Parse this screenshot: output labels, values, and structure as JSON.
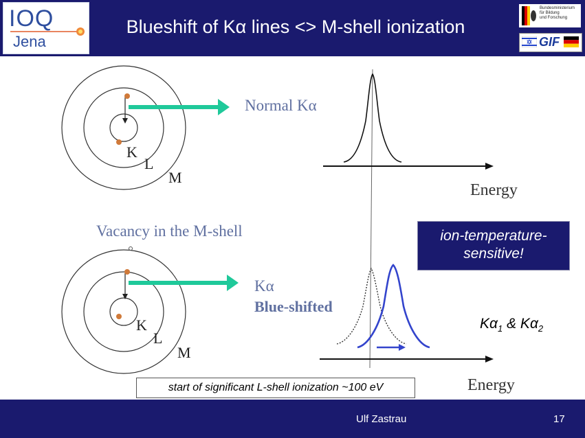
{
  "header": {
    "title": "Blueshift of Kα lines <> M-shell ionization",
    "logo_left_line1": "IOQ",
    "logo_left_line2": "Jena",
    "bmbf_text": "Bundesministerium\nfür Bildung\nund Forschung",
    "gif_text": "GIF"
  },
  "diagram": {
    "normal_label": "Normal Kα",
    "vacancy_label": "Vacancy in the M-shell",
    "shifted_label_1": "Kα",
    "shifted_label_2": "Blue-shifted",
    "shell_k": "K",
    "shell_l": "L",
    "shell_m": "M",
    "energy_label": "Energy",
    "colors": {
      "arrow": "#1fc99a",
      "electron": "#d07a3a",
      "shifted_curve": "#3344cc"
    }
  },
  "callout": {
    "line1": "ion-temperature-",
    "line2": "sensitive!"
  },
  "ka_lines": {
    "k1": "K",
    "a1": "α",
    "s1": "1",
    "amp": " & ",
    "k2": "K",
    "a2": "α",
    "s2": "2"
  },
  "note": "start of significant L-shell ionization ~100 eV",
  "footer": {
    "author": "Ulf Zastrau",
    "page": "17"
  }
}
